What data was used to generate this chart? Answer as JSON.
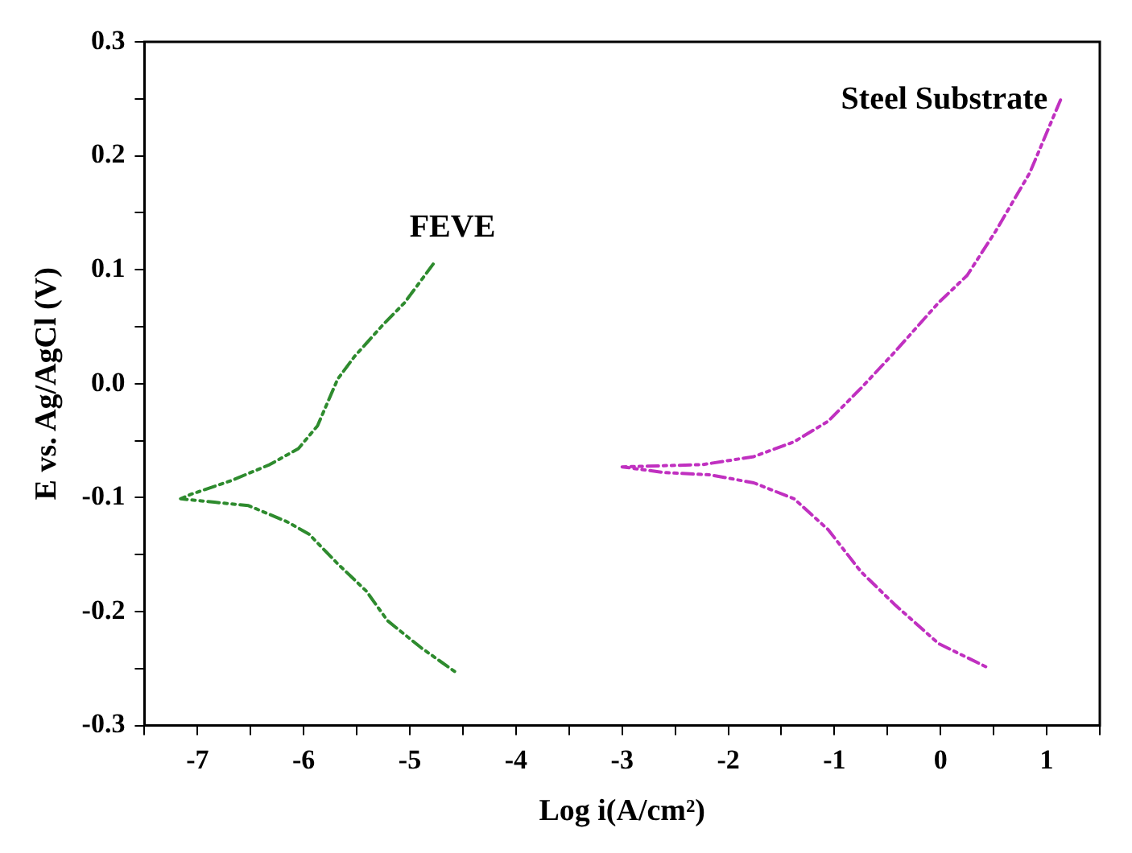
{
  "chart_data": {
    "type": "line",
    "xlabel": "Log i(A/cm²)",
    "ylabel": "E vs. Ag/AgCl (V)",
    "xlim": [
      -7.5,
      1.5
    ],
    "ylim": [
      -0.3,
      0.3
    ],
    "xticks": [
      {
        "value": -7.5,
        "label": null
      },
      -7,
      {
        "value": -6.5,
        "label": null
      },
      -6,
      {
        "value": -5.5,
        "label": null
      },
      -5,
      {
        "value": -4.5,
        "label": null
      },
      -4,
      {
        "value": -3.5,
        "label": null
      },
      -3,
      {
        "value": -2.5,
        "label": null
      },
      -2,
      {
        "value": -1.5,
        "label": null
      },
      -1,
      {
        "value": -0.5,
        "label": null
      },
      0,
      {
        "value": 0.5,
        "label": null
      },
      1,
      {
        "value": 1.5,
        "label": null
      }
    ],
    "yticks": [
      -0.3,
      {
        "value": -0.25,
        "label": null
      },
      -0.2,
      {
        "value": -0.15,
        "label": null
      },
      -0.1,
      {
        "value": -0.05,
        "label": null
      },
      {
        "value": 0,
        "label": "0.0"
      },
      {
        "value": 0.05,
        "label": null
      },
      0.1,
      {
        "value": 0.15,
        "label": null
      },
      0.2,
      {
        "value": 0.25,
        "label": null
      },
      0.3
    ],
    "grid": false,
    "legend": false,
    "marker": "none",
    "line_style": "dashed",
    "series": [
      {
        "name": "FEVE",
        "color": "#2e8b2e",
        "x": [
          -4.78,
          -5.05,
          -5.25,
          -5.52,
          -5.68,
          -5.87,
          -6.05,
          -6.32,
          -6.68,
          -7.06,
          -7.16,
          -6.84,
          -6.52,
          -6.16,
          -5.95,
          -5.68,
          -5.41,
          -5.21,
          -4.89,
          -4.57
        ],
        "values": [
          0.105,
          0.071,
          0.052,
          0.024,
          0.004,
          -0.037,
          -0.057,
          -0.071,
          -0.085,
          -0.097,
          -0.101,
          -0.104,
          -0.107,
          -0.121,
          -0.132,
          -0.158,
          -0.182,
          -0.208,
          -0.232,
          -0.253
        ]
      },
      {
        "name": "Steel Substrate",
        "color": "#c030c0",
        "x": [
          1.13,
          0.84,
          0.52,
          0.25,
          -0.02,
          -0.43,
          -0.75,
          -1.06,
          -1.38,
          -1.76,
          -2.24,
          -3.0,
          -2.6,
          -2.17,
          -1.76,
          -1.38,
          -1.06,
          -0.75,
          -0.43,
          -0.02,
          0.44
        ],
        "values": [
          0.249,
          0.185,
          0.134,
          0.095,
          0.071,
          0.028,
          -0.004,
          -0.033,
          -0.051,
          -0.064,
          -0.071,
          -0.073,
          -0.078,
          -0.08,
          -0.087,
          -0.101,
          -0.128,
          -0.165,
          -0.194,
          -0.228,
          -0.249
        ]
      }
    ]
  }
}
